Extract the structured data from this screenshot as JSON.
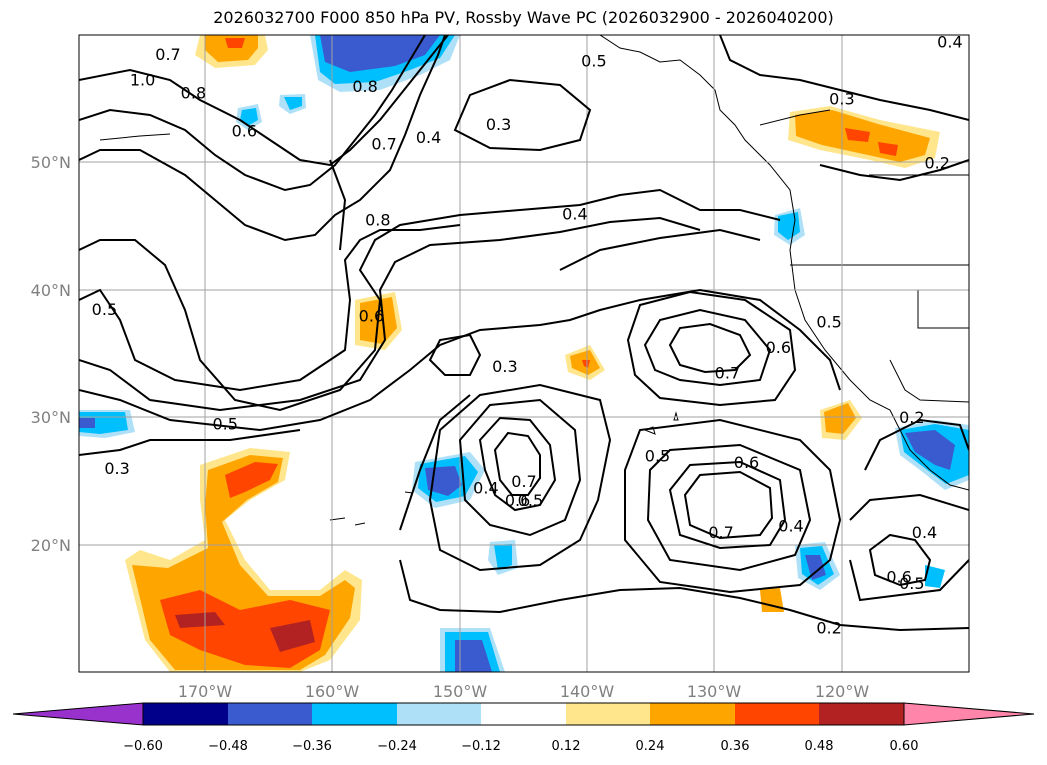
{
  "title": "2026032700 F000 850 hPa PV, Rossby Wave PC (2026032900 - 2026040200)",
  "map": {
    "lon_ticks": [
      "170°W",
      "160°W",
      "150°W",
      "140°W",
      "130°W",
      "120°W"
    ],
    "lat_ticks": [
      "50°N",
      "40°N",
      "30°N",
      "20°N"
    ],
    "extent": {
      "lon_min": -180,
      "lon_max": -110,
      "lat_min": 10,
      "lat_max": 60
    },
    "gridlines": true
  },
  "contour_labels": [
    {
      "text": "1.0",
      "lon": -175,
      "lat": 56.5
    },
    {
      "text": "0.7",
      "lon": -173,
      "lat": 58.5
    },
    {
      "text": "0.8",
      "lon": -171,
      "lat": 55.5
    },
    {
      "text": "0.6",
      "lon": -167,
      "lat": 52.5
    },
    {
      "text": "0.8",
      "lon": -157.5,
      "lat": 56
    },
    {
      "text": "0.7",
      "lon": -156,
      "lat": 51.5
    },
    {
      "text": "0.4",
      "lon": -152.5,
      "lat": 52
    },
    {
      "text": "0.3",
      "lon": -147,
      "lat": 53
    },
    {
      "text": "0.8",
      "lon": -156.5,
      "lat": 45.5
    },
    {
      "text": "0.5",
      "lon": -139.5,
      "lat": 58
    },
    {
      "text": "0.3",
      "lon": -120,
      "lat": 55
    },
    {
      "text": "0.4",
      "lon": -111.5,
      "lat": 59.5
    },
    {
      "text": "0.2",
      "lon": -112.5,
      "lat": 50
    },
    {
      "text": "0.4",
      "lon": -141,
      "lat": 46
    },
    {
      "text": "0.5",
      "lon": -178,
      "lat": 38.5
    },
    {
      "text": "0.6",
      "lon": -157,
      "lat": 38
    },
    {
      "text": "0.3",
      "lon": -146.5,
      "lat": 34
    },
    {
      "text": "0.6",
      "lon": -125,
      "lat": 35.5
    },
    {
      "text": "0.7",
      "lon": -129,
      "lat": 33.5
    },
    {
      "text": "0.5",
      "lon": -121,
      "lat": 37.5
    },
    {
      "text": "0.5",
      "lon": -168.5,
      "lat": 29.5
    },
    {
      "text": "0.3",
      "lon": -177,
      "lat": 26
    },
    {
      "text": "0.4",
      "lon": -148,
      "lat": 24.5
    },
    {
      "text": "0.7",
      "lon": -145,
      "lat": 25
    },
    {
      "text": "0.6",
      "lon": -145.5,
      "lat": 23.5
    },
    {
      "text": "0.5",
      "lon": -144.5,
      "lat": 23.5
    },
    {
      "text": "0.5",
      "lon": -134.5,
      "lat": 27
    },
    {
      "text": "0.6",
      "lon": -127.5,
      "lat": 26.5
    },
    {
      "text": "0.7",
      "lon": -129.5,
      "lat": 21
    },
    {
      "text": "0.4",
      "lon": -124,
      "lat": 21.5
    },
    {
      "text": "0.4",
      "lon": -113.5,
      "lat": 21
    },
    {
      "text": "0.6",
      "lon": -115.5,
      "lat": 17.5
    },
    {
      "text": "0.5",
      "lon": -114.5,
      "lat": 17
    },
    {
      "text": "0.2",
      "lon": -121,
      "lat": 13.5
    },
    {
      "text": "0.2",
      "lon": -114.5,
      "lat": 30
    }
  ],
  "colorbar": {
    "ticks": [
      "−0.60",
      "−0.48",
      "−0.36",
      "−0.24",
      "−0.12",
      "0.12",
      "0.24",
      "0.36",
      "0.48",
      "0.60"
    ],
    "colors": [
      "#9932cc",
      "#00008b",
      "#3a5bd0",
      "#00bfff",
      "#aee0f8",
      "#ffffff",
      "#ffe68c",
      "#ffa500",
      "#ff4500",
      "#b22222",
      "#ff85aa"
    ]
  }
}
